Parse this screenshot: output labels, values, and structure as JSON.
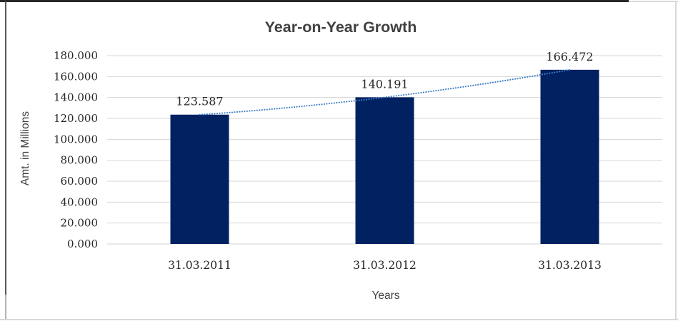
{
  "chart_data": {
    "type": "bar",
    "title": "Year-on-Year Growth",
    "xlabel": "Years",
    "ylabel": "Amt. in Millions",
    "categories": [
      "31.03.2011",
      "31.03.2012",
      "31.03.2013"
    ],
    "values": [
      123.587,
      140.191,
      166.472
    ],
    "data_labels": [
      "123.587",
      "140.191",
      "166.472"
    ],
    "ytick_labels": [
      "0.000",
      "20.000",
      "40.000",
      "60.000",
      "80.000",
      "100.000",
      "120.000",
      "140.000",
      "160.000",
      "180.000"
    ],
    "ytick_step": 20,
    "ylim": [
      0,
      180
    ],
    "grid": true,
    "legend": "none",
    "bar_color": "#012161",
    "gridline_color": "#D6D6D6",
    "trendline": {
      "style": "dotted",
      "color": "#3E7EC6",
      "through": "bar-tops"
    },
    "text_colors": {
      "title": "#404040",
      "axis_titles": "#404040",
      "ticks": "#262626",
      "data_labels": "#262626"
    }
  },
  "frame": {
    "top_border_color": "#262626",
    "left_border_color": "#595959",
    "left_border_lower_color": "#B3B3B3",
    "light_border_color": "#D9D9D9"
  }
}
